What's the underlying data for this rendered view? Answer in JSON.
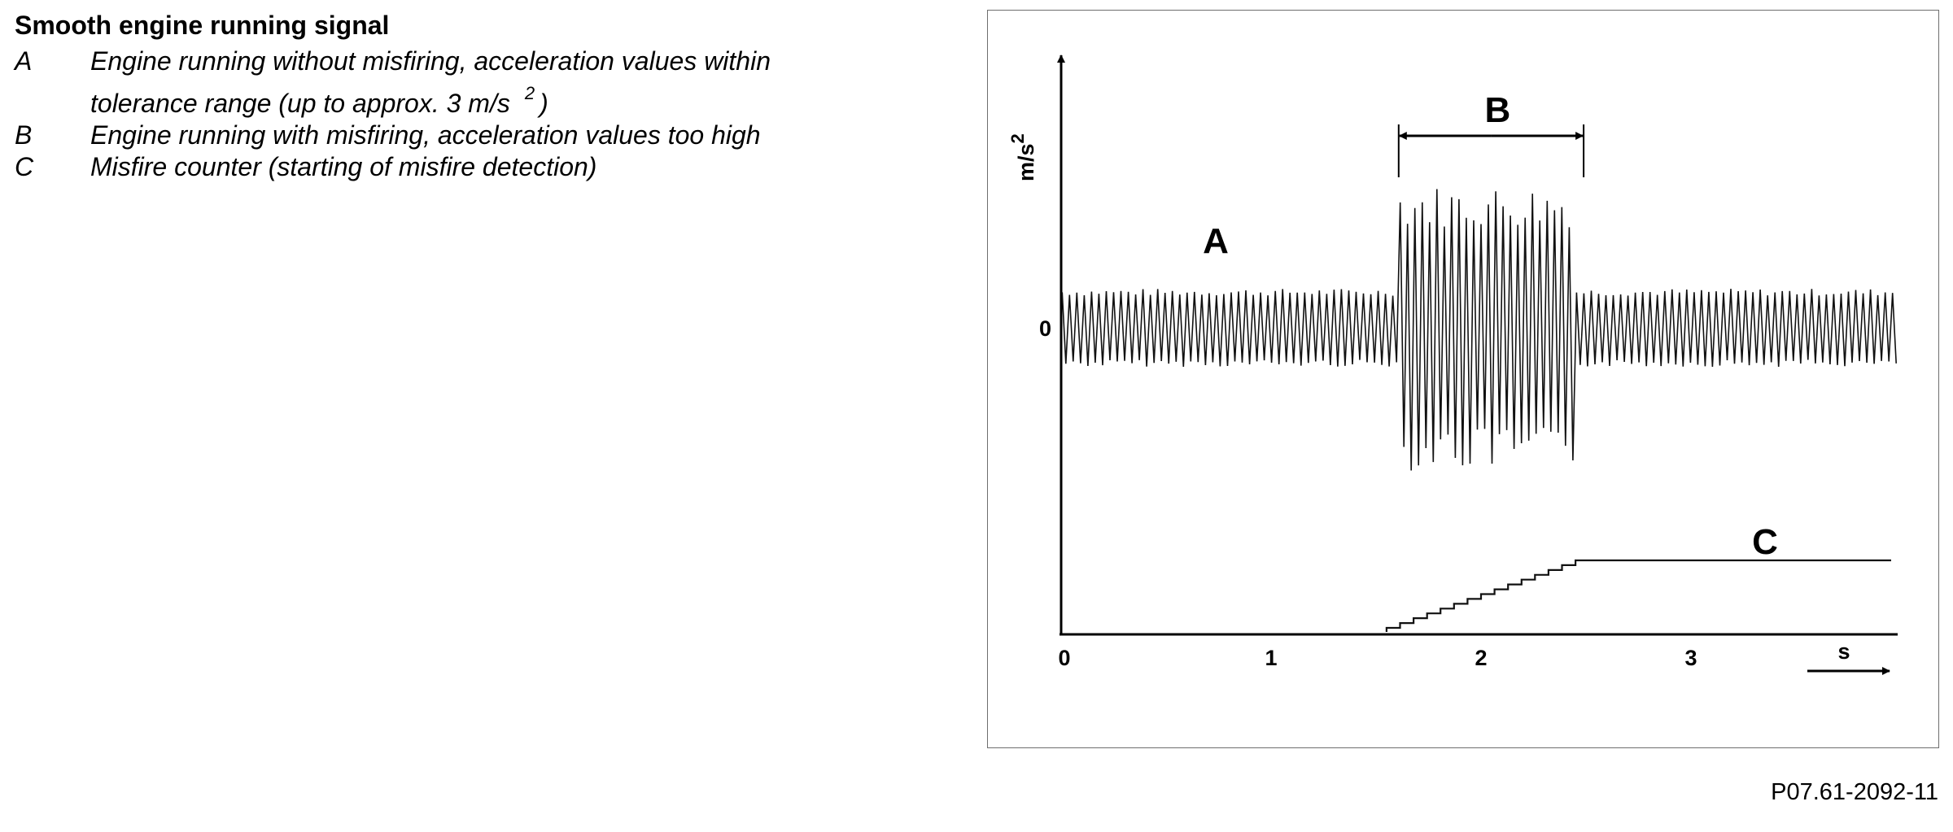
{
  "legend": {
    "title": "Smooth engine running signal",
    "items": [
      {
        "key": "A",
        "text": "Engine running without misfiring, acceleration values within",
        "text2": "tolerance range (up to approx. 3 m/s",
        "sup": "2",
        "close": ")"
      },
      {
        "key": "B",
        "text": "Engine running with misfiring, acceleration values too high"
      },
      {
        "key": "C",
        "text": "Misfire counter (starting of misfire detection)"
      }
    ]
  },
  "figure_ref": "P07.61-2092-11",
  "chart_data": {
    "type": "line",
    "title": "",
    "xlabel": "s",
    "ylabel": "m/s",
    "ylabel_sup": "2",
    "x_ticks": [
      "0",
      "1",
      "2",
      "3"
    ],
    "y_ticks": [
      "0"
    ],
    "xlim": [
      0,
      4
    ],
    "annotations": {
      "A": "A",
      "B": "B",
      "C": "C"
    },
    "misfire_interval": [
      1.6,
      2.45
    ],
    "series": [
      {
        "role": "acceleration-signal",
        "normal_amplitude": 3,
        "misfire_amplitude": 11,
        "oscillation_period": 0.035
      },
      {
        "role": "misfire-counter",
        "start": 1.55,
        "end": 2.45,
        "steps": 14
      }
    ],
    "axis_color": "#000000",
    "grid": false
  }
}
